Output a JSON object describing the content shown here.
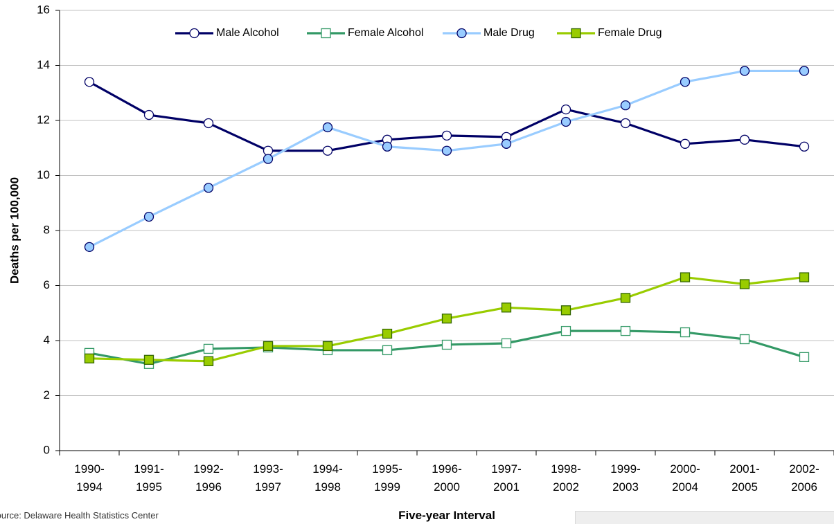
{
  "chart_data": {
    "type": "line",
    "x_label": "Five-year Interval",
    "y_label": "Deaths per 100,000",
    "source": "Source: Delaware Health Statistics Center",
    "categories": [
      "1990-1994",
      "1991-1995",
      "1992-1996",
      "1993-1997",
      "1994-1998",
      "1995-1999",
      "1996-2000",
      "1997-2001",
      "1998-2002",
      "1999-2003",
      "2000-2004",
      "2001-2005",
      "2002-2006"
    ],
    "series": [
      {
        "name": "Male Alcohol",
        "color": "#000066",
        "marker": "circle",
        "marker_fill": "#ffffff",
        "marker_stroke": "#000066",
        "values": [
          13.4,
          12.2,
          11.9,
          10.9,
          10.9,
          11.3,
          11.45,
          11.4,
          12.4,
          11.9,
          11.15,
          11.3,
          11.05
        ]
      },
      {
        "name": "Female Alcohol",
        "color": "#339966",
        "marker": "square",
        "marker_fill": "#ffffff",
        "marker_stroke": "#339966",
        "values": [
          3.55,
          3.15,
          3.7,
          3.75,
          3.65,
          3.65,
          3.85,
          3.9,
          4.35,
          4.35,
          4.3,
          4.05,
          3.4
        ]
      },
      {
        "name": "Male Drug",
        "color": "#99ccff",
        "marker": "circle",
        "marker_fill": "#99ccff",
        "marker_stroke": "#000066",
        "values": [
          7.4,
          8.5,
          9.55,
          10.6,
          11.75,
          11.05,
          10.9,
          11.15,
          11.95,
          12.55,
          13.4,
          13.8,
          13.8
        ]
      },
      {
        "name": "Female Drug",
        "color": "#99cc00",
        "marker": "square",
        "marker_fill": "#99cc00",
        "marker_stroke": "#336600",
        "values": [
          3.35,
          3.3,
          3.25,
          3.8,
          3.8,
          4.25,
          4.8,
          5.2,
          5.1,
          5.55,
          6.3,
          6.05,
          6.3
        ]
      }
    ],
    "ylim": [
      0,
      16
    ],
    "yticks": [
      0,
      2,
      4,
      6,
      8,
      10,
      12,
      14,
      16
    ],
    "grid": true,
    "legend": "top"
  }
}
